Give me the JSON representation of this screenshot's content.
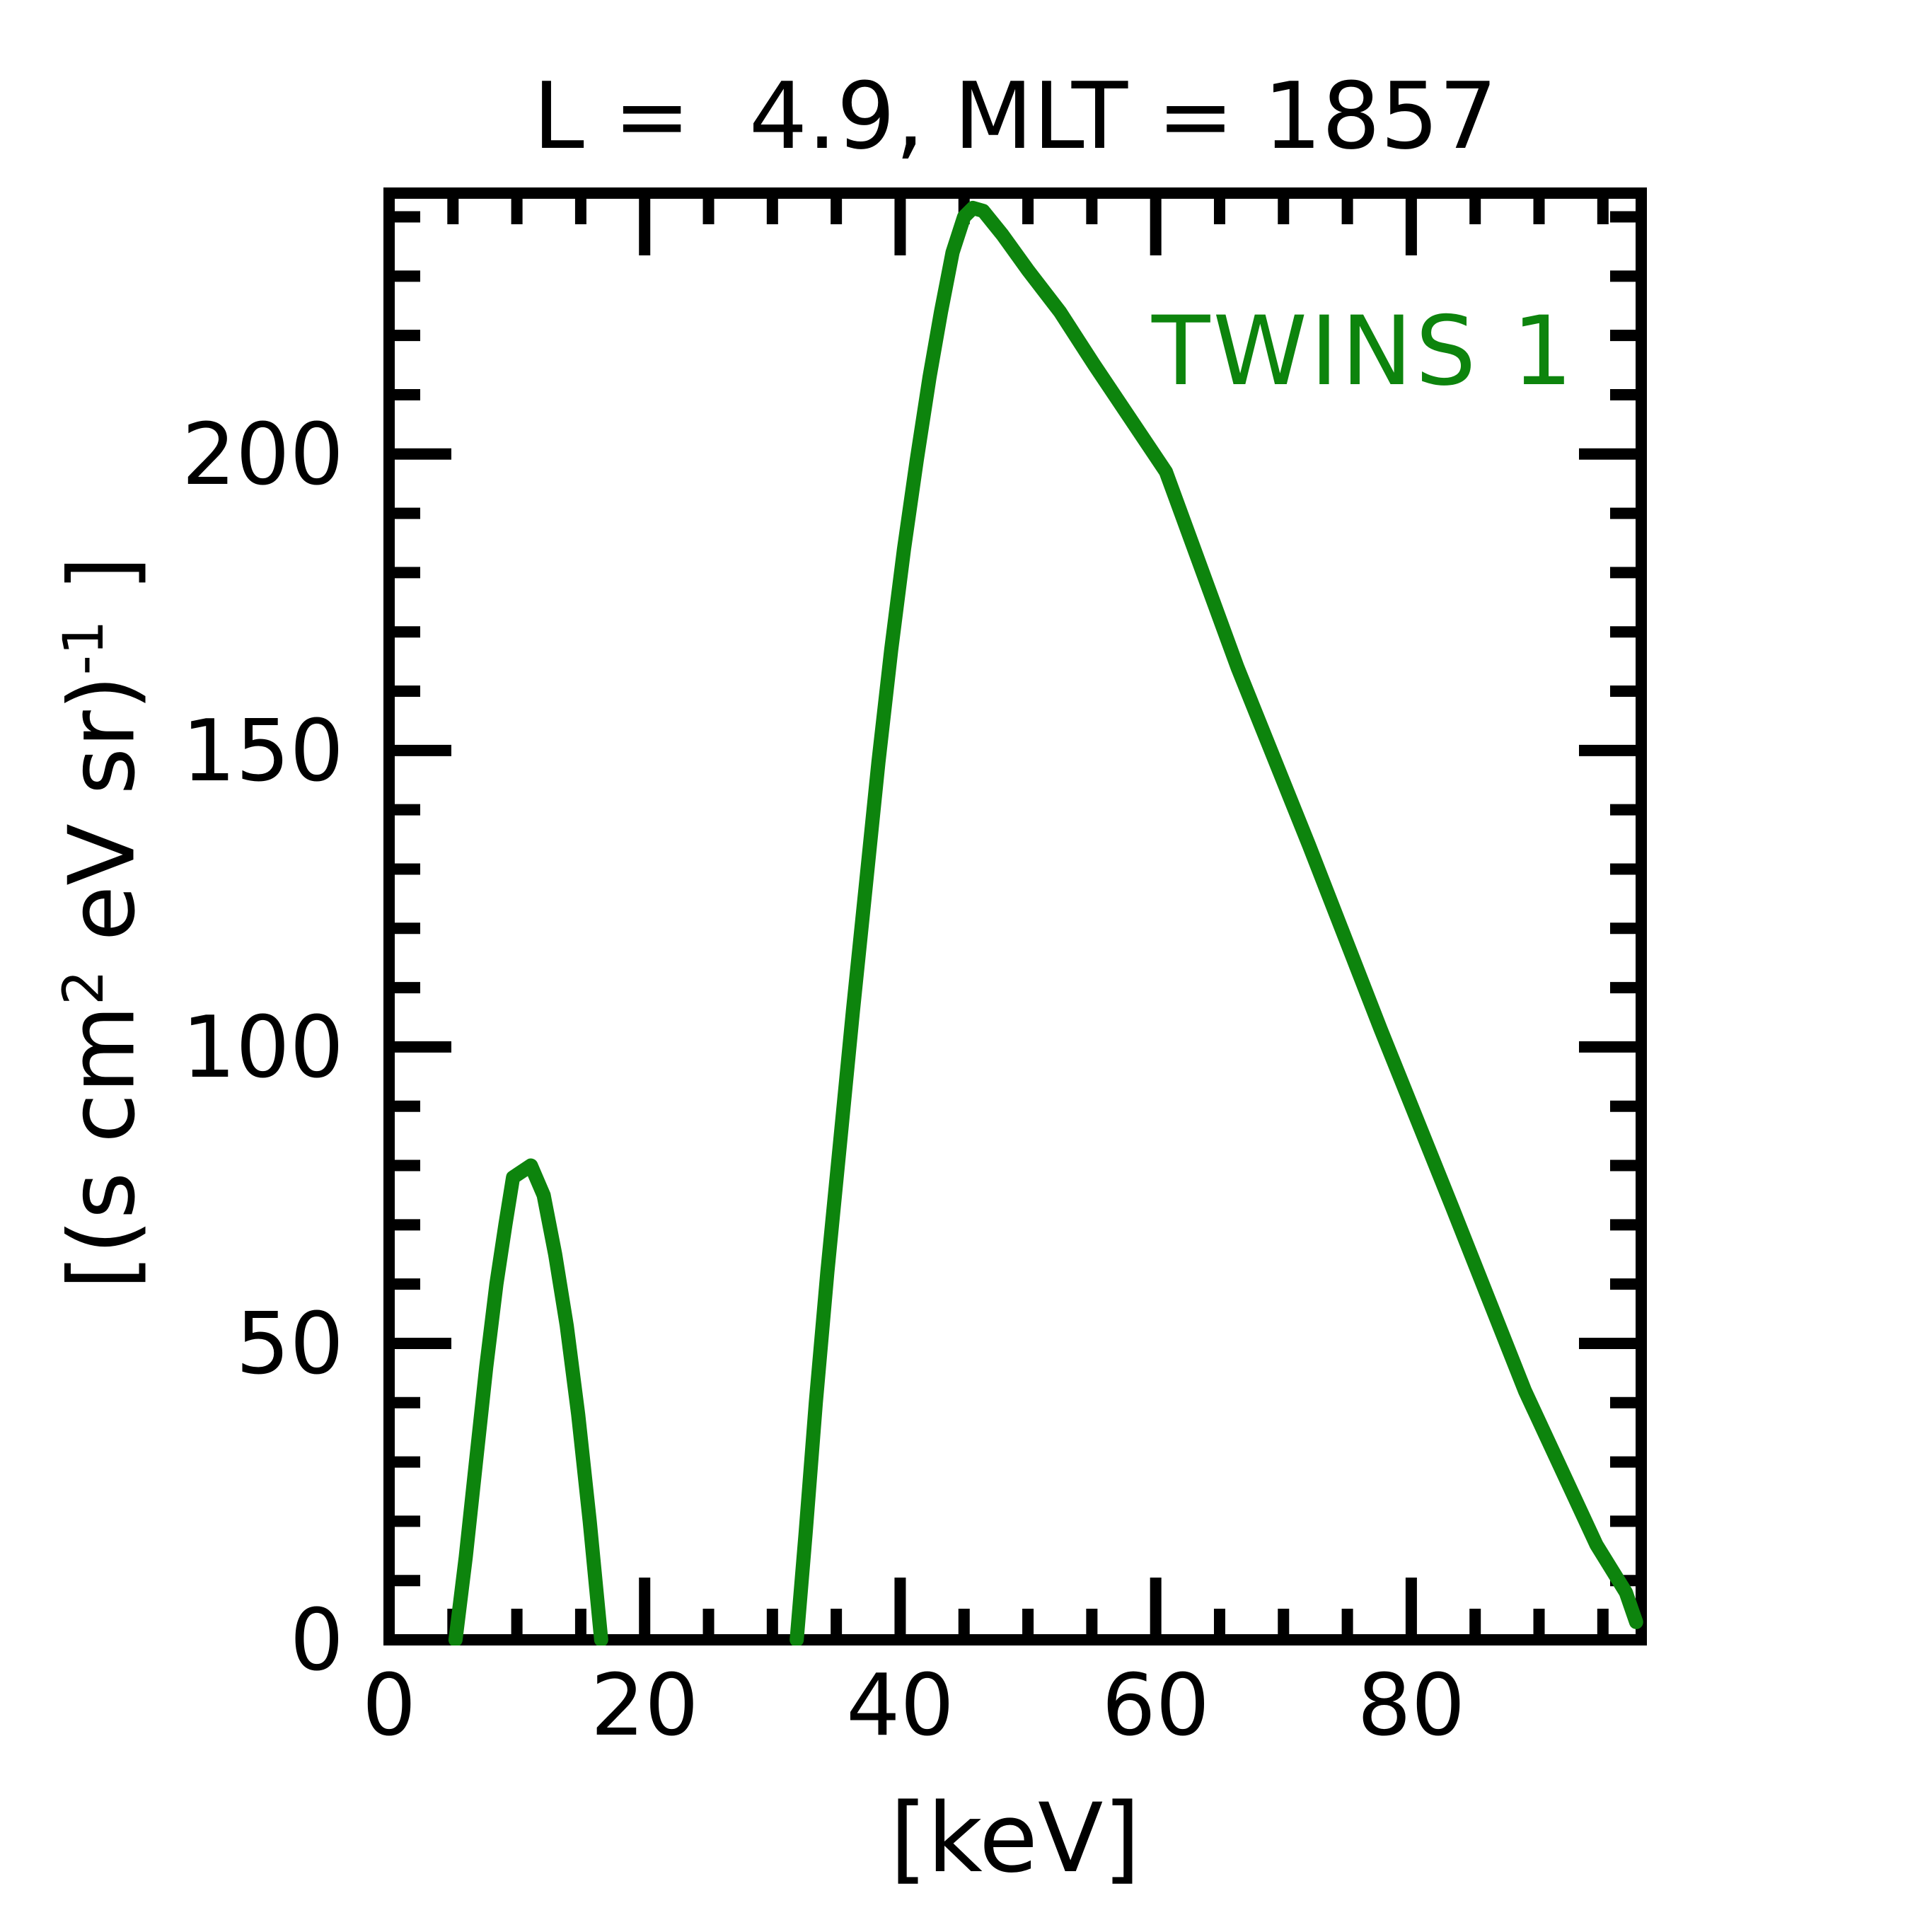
{
  "title": "L =  4.9, MLT = 1857",
  "legend": {
    "label": "TWINS 1"
  },
  "axis_labels": {
    "x": "[keV]",
    "y_prefix": "[(s cm",
    "y_sup1": "2",
    "y_mid": " eV sr)",
    "y_sup2": "-1",
    "y_suffix": " ]"
  },
  "colors": {
    "series_green": "#0d840d",
    "axis_black": "#000000",
    "background": "#ffffff"
  },
  "chart_data": {
    "type": "line",
    "title": "L =  4.9, MLT = 1857",
    "xlabel": "[keV]",
    "ylabel": "[(s cm^2 eV sr)^-1 ]",
    "xlim": [
      0,
      98
    ],
    "ylim": [
      0,
      244
    ],
    "x_major_ticks": [
      0,
      20,
      40,
      60,
      80
    ],
    "x_tick_labels": [
      "0",
      "20",
      "40",
      "60",
      "80"
    ],
    "x_minor_step": 5,
    "y_major_ticks": [
      0,
      50,
      100,
      150,
      200
    ],
    "y_tick_labels": [
      "0",
      "50",
      "100",
      "150",
      "200"
    ],
    "y_minor_step": 10,
    "grid": false,
    "legend_position": "upper right inside",
    "series": [
      {
        "name": "TWINS 1",
        "color": "#0d840d",
        "segments": [
          [
            [
              5.2,
              0
            ],
            [
              6.0,
              14
            ],
            [
              6.8,
              30
            ],
            [
              7.6,
              46
            ],
            [
              8.4,
              60
            ],
            [
              9.1,
              70
            ],
            [
              9.7,
              78
            ],
            [
              11.1,
              80
            ],
            [
              12.1,
              75
            ],
            [
              13.0,
              65
            ],
            [
              13.9,
              53
            ],
            [
              14.8,
              38
            ],
            [
              15.7,
              20
            ],
            [
              16.6,
              0
            ]
          ],
          [
            [
              31.9,
              0
            ],
            [
              32.6,
              18
            ],
            [
              33.4,
              40
            ],
            [
              34.3,
              62
            ],
            [
              35.3,
              84
            ],
            [
              36.3,
              106
            ],
            [
              37.3,
              127
            ],
            [
              38.3,
              148
            ],
            [
              39.3,
              167
            ],
            [
              40.3,
              184
            ],
            [
              41.3,
              199
            ],
            [
              42.3,
              213
            ],
            [
              43.2,
              224
            ],
            [
              44.1,
              234
            ],
            [
              45.0,
              240
            ],
            [
              45.7,
              241.5
            ],
            [
              46.5,
              241
            ],
            [
              48.0,
              237
            ],
            [
              50.0,
              231
            ],
            [
              52.5,
              224
            ],
            [
              55.2,
              215
            ],
            [
              60.8,
              197
            ],
            [
              66.4,
              164
            ],
            [
              72.0,
              134
            ],
            [
              77.6,
              103
            ],
            [
              83.2,
              73
            ],
            [
              88.9,
              42
            ],
            [
              94.5,
              16
            ],
            [
              96.8,
              8
            ],
            [
              97.6,
              3
            ]
          ]
        ]
      }
    ]
  }
}
